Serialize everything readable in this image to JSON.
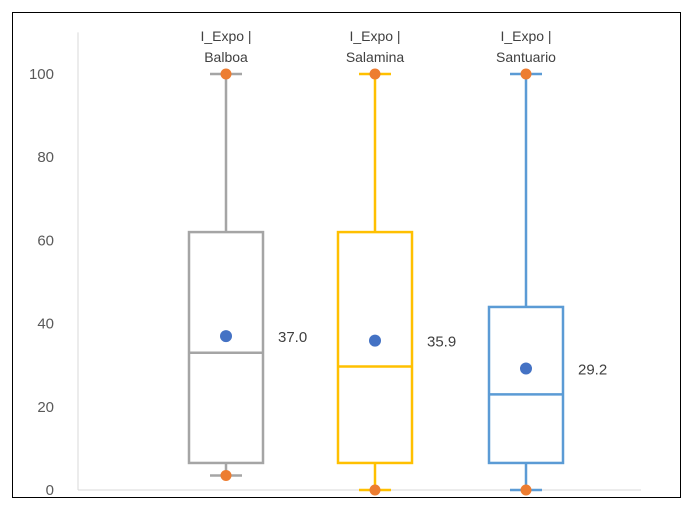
{
  "chart_data": {
    "type": "boxplot",
    "title": "",
    "xlabel": "",
    "ylabel": "",
    "ylim": [
      0,
      100
    ],
    "yticks": [
      0,
      20,
      40,
      60,
      80,
      100
    ],
    "grid": false,
    "categories": [
      {
        "line1": "I_Expo |",
        "line2": "Balboa"
      },
      {
        "line1": "I_Expo |",
        "line2": "Salamina"
      },
      {
        "line1": "I_Expo |",
        "line2": "Santuario"
      }
    ],
    "series": [
      {
        "min": 3.5,
        "q1": 6.5,
        "median": 33.0,
        "q3": 62.0,
        "max": 100,
        "mean": 37.0,
        "mean_label": "37.0",
        "color": "#a5a5a5"
      },
      {
        "min": 0,
        "q1": 6.5,
        "median": 29.7,
        "q3": 62.0,
        "max": 100,
        "mean": 35.9,
        "mean_label": "35.9",
        "color": "#ffc000"
      },
      {
        "min": 0,
        "q1": 6.5,
        "median": 23.0,
        "q3": 44.0,
        "max": 100,
        "mean": 29.2,
        "mean_label": "29.2",
        "color": "#5b9bd5"
      }
    ],
    "colors": {
      "mean_marker": "#4472c4",
      "extreme_marker": "#ed7d31",
      "axis": "#d9d9d9"
    }
  }
}
